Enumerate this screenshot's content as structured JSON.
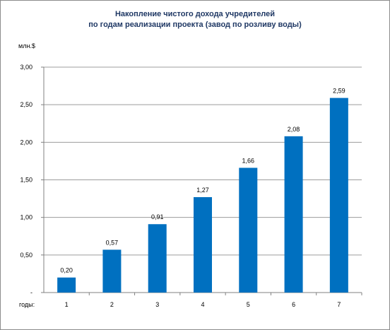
{
  "chart_data": {
    "type": "bar",
    "title_lines": [
      "Накопление чистого дохода учредителей",
      "по годам реализации проекта (завод  по розливу воды)"
    ],
    "ylabel": "млн.$",
    "xlabel": "годы:",
    "categories": [
      "1",
      "2",
      "3",
      "4",
      "5",
      "6",
      "7"
    ],
    "values": [
      0.2,
      0.57,
      0.91,
      1.27,
      1.66,
      2.08,
      2.59
    ],
    "data_labels": [
      "0,20",
      "0,57",
      "0,91",
      "1,27",
      "1,66",
      "2,08",
      "2,59"
    ],
    "ylim": [
      0,
      3.0
    ],
    "y_ticks": [
      {
        "value": 0,
        "label": "-"
      },
      {
        "value": 0.5,
        "label": "0,50"
      },
      {
        "value": 1.0,
        "label": "1,00"
      },
      {
        "value": 1.5,
        "label": "1,50"
      },
      {
        "value": 2.0,
        "label": "2,00"
      },
      {
        "value": 2.5,
        "label": "2,50"
      },
      {
        "value": 3.0,
        "label": "3,00"
      }
    ],
    "grid": true,
    "legend": "none",
    "bar_color": "#0070c0",
    "title_color": "#1f3864",
    "grid_color": "#9c9c9c"
  }
}
